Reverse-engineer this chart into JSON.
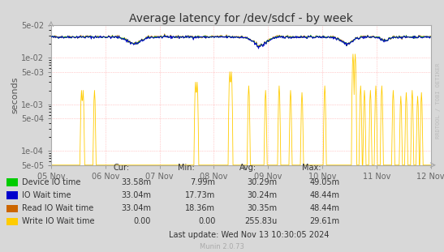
{
  "title": "Average latency for /dev/sdcf - by week",
  "ylabel": "seconds",
  "xlabel_dates": [
    "05 Nov",
    "06 Nov",
    "07 Nov",
    "08 Nov",
    "09 Nov",
    "10 Nov",
    "11 Nov",
    "12 Nov"
  ],
  "background_color": "#d8d8d8",
  "plot_bg_color": "#ffffff",
  "grid_color": "#ff9999",
  "ymin": 5e-05,
  "ymax": 0.05,
  "legend_entries": [
    {
      "label": "Device IO time",
      "color": "#00cc00"
    },
    {
      "label": "IO Wait time",
      "color": "#0000cc"
    },
    {
      "label": "Read IO Wait time",
      "color": "#cc6600"
    },
    {
      "label": "Write IO Wait time",
      "color": "#ffcc00"
    }
  ],
  "legend_stats": [
    {
      "cur": "33.58m",
      "min": "7.99m",
      "avg": "30.29m",
      "max": "49.05m"
    },
    {
      "cur": "33.04m",
      "min": "17.73m",
      "avg": "30.24m",
      "max": "48.44m"
    },
    {
      "cur": "33.04m",
      "min": "18.36m",
      "avg": "30.35m",
      "max": "48.44m"
    },
    {
      "cur": "0.00",
      "min": "0.00",
      "avg": "255.83u",
      "max": "29.61m"
    }
  ],
  "last_update": "Last update: Wed Nov 13 10:30:05 2024",
  "munin_version": "Munin 2.0.73",
  "watermark": "RRDTOOL / TOBI OETIKER",
  "num_points": 700,
  "yticks": [
    5e-05,
    0.0001,
    0.0005,
    0.001,
    0.005,
    0.01,
    0.05
  ],
  "ytick_labels": [
    "5e-05",
    "1e-04",
    "5e-04",
    "1e-03",
    "5e-03",
    "1e-02",
    "5e-02"
  ]
}
